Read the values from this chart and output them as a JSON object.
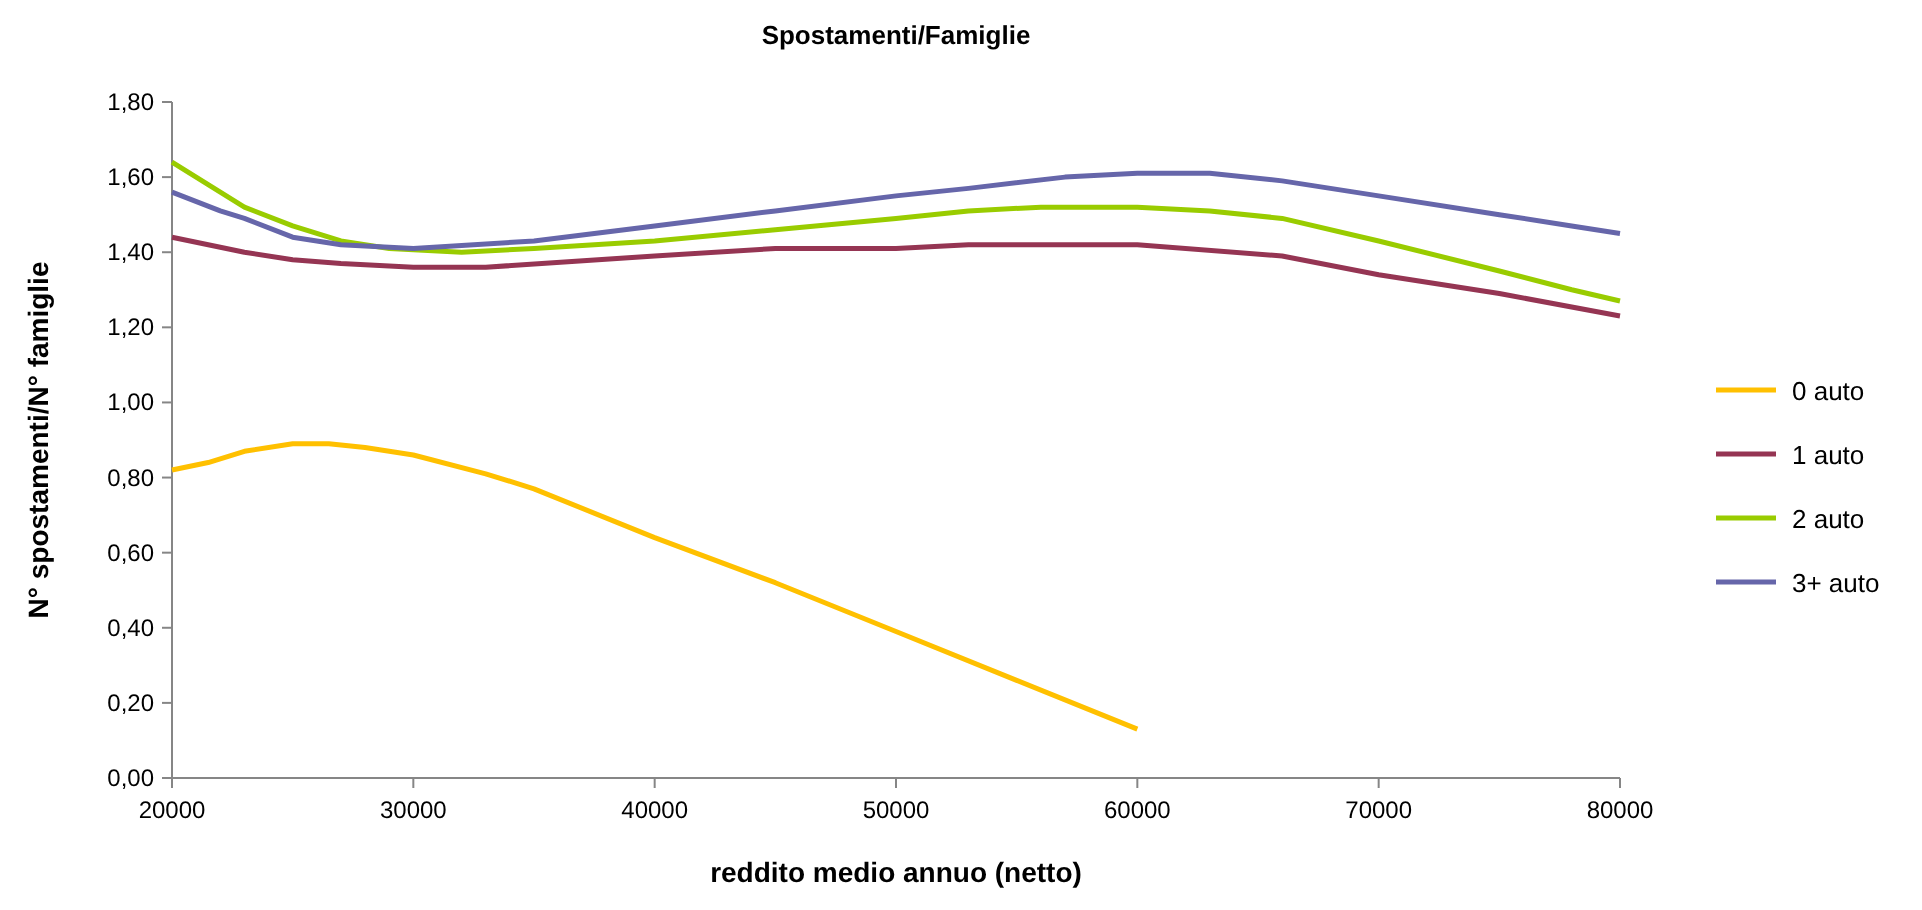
{
  "chart_data": {
    "type": "line",
    "title": "Spostamenti/Famiglie",
    "xlabel": "reddito medio annuo (netto)",
    "ylabel": "N° spostamenti/N° famiglie",
    "xlim": [
      20000,
      80000
    ],
    "xticks": [
      20000,
      30000,
      40000,
      50000,
      60000,
      70000,
      80000
    ],
    "ylim": [
      0,
      1.8
    ],
    "yticks": [
      {
        "value": 0,
        "label": "0,00"
      },
      {
        "value": 0.2,
        "label": "0,20"
      },
      {
        "value": 0.4,
        "label": "0,40"
      },
      {
        "value": 0.6,
        "label": "0,60"
      },
      {
        "value": 0.8,
        "label": "0,80"
      },
      {
        "value": 1,
        "label": "1,00"
      },
      {
        "value": 1.2,
        "label": "1,20"
      },
      {
        "value": 1.4,
        "label": "1,40"
      },
      {
        "value": 1.6,
        "label": "1,60"
      },
      {
        "value": 1.8,
        "label": "1,80"
      }
    ],
    "grid": false,
    "legend": "right",
    "marker": "none",
    "line_style": "solid",
    "series": [
      {
        "name": "0 auto",
        "color": "#ffc000",
        "x": [
          20000,
          21500,
          23000,
          25000,
          26500,
          28000,
          30000,
          33000,
          35000,
          40000,
          45000,
          50000,
          55000,
          60000
        ],
        "values": [
          0.82,
          0.84,
          0.87,
          0.89,
          0.89,
          0.88,
          0.86,
          0.81,
          0.77,
          0.64,
          0.52,
          0.39,
          0.26,
          0.13
        ]
      },
      {
        "name": "1 auto",
        "color": "#953553",
        "x": [
          20000,
          23000,
          25000,
          27000,
          30000,
          33000,
          40000,
          45000,
          50000,
          53000,
          60000,
          66000,
          70000,
          75000,
          80000
        ],
        "values": [
          1.44,
          1.4,
          1.38,
          1.37,
          1.36,
          1.36,
          1.39,
          1.41,
          1.41,
          1.42,
          1.42,
          1.39,
          1.34,
          1.29,
          1.23
        ]
      },
      {
        "name": "2 auto",
        "color": "#99cc00",
        "x": [
          20000,
          21500,
          23000,
          25000,
          27000,
          29000,
          32000,
          35000,
          40000,
          45000,
          50000,
          53000,
          56000,
          60000,
          63000,
          66000,
          70000,
          75000,
          78000,
          80000
        ],
        "values": [
          1.64,
          1.58,
          1.52,
          1.47,
          1.43,
          1.41,
          1.4,
          1.41,
          1.43,
          1.46,
          1.49,
          1.51,
          1.52,
          1.52,
          1.51,
          1.49,
          1.43,
          1.35,
          1.3,
          1.27
        ]
      },
      {
        "name": "3+ auto",
        "color": "#6666aa",
        "x": [
          20000,
          22000,
          23000,
          25000,
          27000,
          30000,
          35000,
          40000,
          45000,
          50000,
          53000,
          57000,
          60000,
          63000,
          66000,
          70000,
          75000,
          78000,
          80000
        ],
        "values": [
          1.56,
          1.51,
          1.49,
          1.44,
          1.42,
          1.41,
          1.43,
          1.47,
          1.51,
          1.55,
          1.57,
          1.6,
          1.61,
          1.61,
          1.59,
          1.55,
          1.5,
          1.47,
          1.45
        ]
      }
    ]
  }
}
